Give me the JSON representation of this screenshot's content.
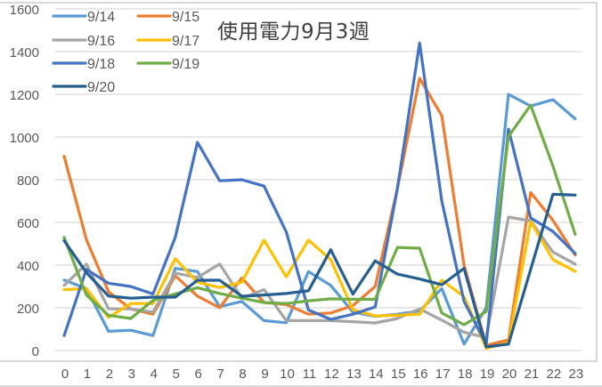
{
  "chart_data": {
    "type": "line",
    "title": "使用電力9月3週",
    "xlabel": "",
    "ylabel": "",
    "ylim": [
      0,
      1600
    ],
    "yticks": [
      0,
      200,
      400,
      600,
      800,
      1000,
      1200,
      1400,
      1600
    ],
    "grid": true,
    "legend_position": "top-left (inside plot)",
    "x": [
      0,
      1,
      2,
      3,
      4,
      5,
      6,
      7,
      8,
      9,
      10,
      11,
      12,
      13,
      14,
      15,
      16,
      17,
      18,
      19,
      20,
      21,
      22,
      23
    ],
    "series": [
      {
        "name": "9/14",
        "color": "#5b9bd5",
        "values": [
          330,
          290,
          90,
          95,
          70,
          385,
          370,
          205,
          230,
          140,
          130,
          370,
          305,
          180,
          160,
          170,
          185,
          290,
          30,
          200,
          1200,
          1145,
          1175,
          1085
        ]
      },
      {
        "name": "9/15",
        "color": "#ed7d31",
        "values": [
          910,
          520,
          275,
          195,
          170,
          350,
          255,
          200,
          340,
          225,
          215,
          170,
          176,
          210,
          300,
          760,
          1275,
          1100,
          400,
          24,
          50,
          740,
          610,
          447
        ]
      },
      {
        "name": "9/16",
        "color": "#a5a5a5",
        "values": [
          305,
          405,
          195,
          195,
          180,
          363,
          342,
          405,
          245,
          285,
          140,
          140,
          140,
          135,
          129,
          150,
          195,
          142,
          86,
          60,
          625,
          607,
          461,
          405
        ]
      },
      {
        "name": "9/17",
        "color": "#ffc000",
        "values": [
          285,
          290,
          155,
          220,
          220,
          430,
          320,
          295,
          320,
          517,
          345,
          517,
          426,
          191,
          162,
          165,
          170,
          329,
          253,
          10,
          37,
          604,
          426,
          371
        ]
      },
      {
        "name": "9/18",
        "color": "#4472c4",
        "values": [
          70,
          380,
          315,
          300,
          265,
          530,
          975,
          795,
          800,
          770,
          555,
          190,
          146,
          170,
          204,
          760,
          1440,
          700,
          230,
          30,
          1037,
          621,
          558,
          454
        ]
      },
      {
        "name": "9/19",
        "color": "#70ad47",
        "values": [
          530,
          260,
          165,
          150,
          235,
          265,
          294,
          267,
          245,
          225,
          220,
          233,
          242,
          240,
          240,
          483,
          479,
          176,
          121,
          183,
          1003,
          1149,
          864,
          544
        ]
      },
      {
        "name": "9/20",
        "color": "#255e91",
        "values": [
          515,
          365,
          255,
          245,
          250,
          250,
          329,
          329,
          254,
          260,
          267,
          280,
          472,
          264,
          420,
          358,
          335,
          308,
          385,
          17,
          30,
          380,
          732,
          728
        ]
      }
    ]
  },
  "axis": {
    "y_labels": [
      "0",
      "200",
      "400",
      "600",
      "800",
      "1000",
      "1200",
      "1400",
      "1600"
    ],
    "x_labels": [
      "0",
      "1",
      "2",
      "3",
      "4",
      "5",
      "6",
      "7",
      "8",
      "9",
      "10",
      "11",
      "12",
      "13",
      "14",
      "15",
      "16",
      "17",
      "18",
      "19",
      "20",
      "21",
      "22",
      "23"
    ]
  },
  "legend": [
    {
      "label": "9/14",
      "color": "#5b9bd5"
    },
    {
      "label": "9/15",
      "color": "#ed7d31"
    },
    {
      "label": "9/16",
      "color": "#a5a5a5"
    },
    {
      "label": "9/17",
      "color": "#ffc000"
    },
    {
      "label": "9/18",
      "color": "#4472c4"
    },
    {
      "label": "9/19",
      "color": "#70ad47"
    },
    {
      "label": "9/20",
      "color": "#255e91"
    }
  ],
  "colors": {
    "grid": "#d9d9d9",
    "axis_text": "#595959",
    "title_text": "#404040"
  }
}
